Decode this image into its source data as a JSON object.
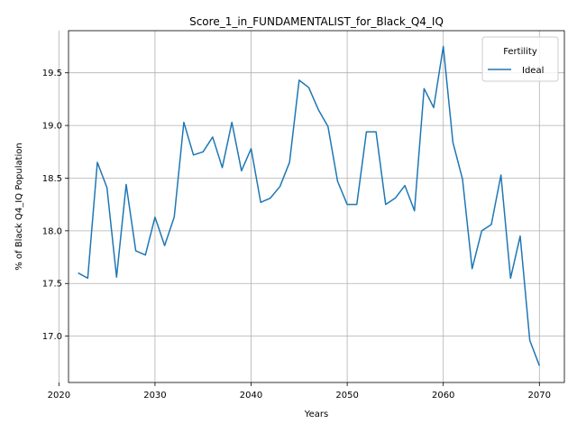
{
  "chart_data": {
    "type": "line",
    "title": "Score_1_in_FUNDAMENTALIST_for_Black_Q4_IQ",
    "xlabel": "Years",
    "ylabel": "% of Black Q4_IQ Population",
    "xlim": [
      2021,
      2072.6
    ],
    "ylim": [
      16.56,
      19.9
    ],
    "xticks": [
      2020,
      2030,
      2040,
      2050,
      2060,
      2070
    ],
    "yticks": [
      17.0,
      17.5,
      18.0,
      18.5,
      19.0,
      19.5
    ],
    "xtick_labels": [
      "2020",
      "2030",
      "2040",
      "2050",
      "2060",
      "2070"
    ],
    "ytick_labels": [
      "17.0",
      "17.5",
      "18.0",
      "18.5",
      "19.0",
      "19.5"
    ],
    "grid": true,
    "legend": {
      "title": "Fertility",
      "placement": "top-right"
    },
    "series": [
      {
        "name": "Ideal",
        "color": "#1f77b4",
        "x": [
          2022,
          2023,
          2024,
          2025,
          2026,
          2027,
          2028,
          2029,
          2030,
          2031,
          2032,
          2033,
          2034,
          2035,
          2036,
          2037,
          2038,
          2039,
          2040,
          2041,
          2042,
          2043,
          2044,
          2045,
          2046,
          2047,
          2048,
          2049,
          2050,
          2051,
          2052,
          2053,
          2054,
          2055,
          2056,
          2057,
          2058,
          2059,
          2060,
          2061,
          2062,
          2063,
          2064,
          2065,
          2066,
          2067,
          2068,
          2069,
          2070
        ],
        "y": [
          17.6,
          17.55,
          18.65,
          18.41,
          17.56,
          18.44,
          17.81,
          17.77,
          18.13,
          17.86,
          18.13,
          19.03,
          18.72,
          18.75,
          18.89,
          18.6,
          19.03,
          18.57,
          18.78,
          18.27,
          18.31,
          18.42,
          18.65,
          19.43,
          19.36,
          19.15,
          18.99,
          18.47,
          18.25,
          18.25,
          18.94,
          18.94,
          18.25,
          18.31,
          18.43,
          18.19,
          19.35,
          19.17,
          19.75,
          18.84,
          18.49,
          17.64,
          18.0,
          18.06,
          18.53,
          17.55,
          17.95,
          16.96,
          16.72
        ]
      }
    ]
  }
}
